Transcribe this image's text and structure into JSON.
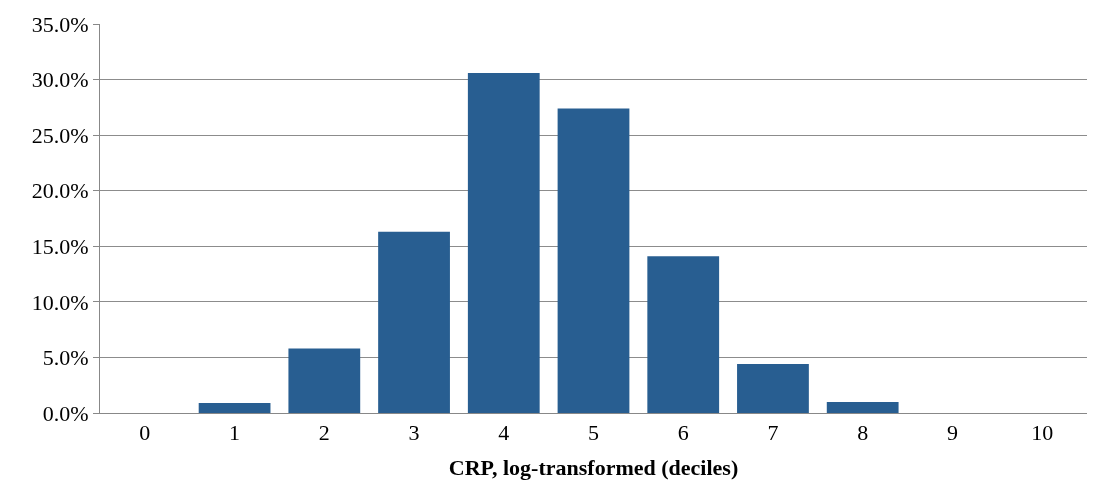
{
  "chart_data": {
    "type": "bar",
    "xlabel": "CRP, log-transformed (deciles)",
    "categories": [
      "0",
      "1",
      "2",
      "3",
      "4",
      "5",
      "6",
      "7",
      "8",
      "9",
      "10"
    ],
    "values": [
      0,
      0.9,
      5.8,
      16.3,
      30.6,
      27.4,
      14.1,
      4.4,
      1.0,
      0,
      0
    ],
    "color": "#285e91",
    "ylim": [
      0,
      35
    ],
    "yticks": [
      {
        "value": 0,
        "label": "0.0%"
      },
      {
        "value": 5,
        "label": "5.0%"
      },
      {
        "value": 10,
        "label": "10.0%"
      },
      {
        "value": 15,
        "label": "15.0%"
      },
      {
        "value": 20,
        "label": "20.0%"
      },
      {
        "value": 25,
        "label": "25.0%"
      },
      {
        "value": 30,
        "label": "30.0%"
      },
      {
        "value": 35,
        "label": "35.0%"
      }
    ],
    "grid": "y"
  }
}
